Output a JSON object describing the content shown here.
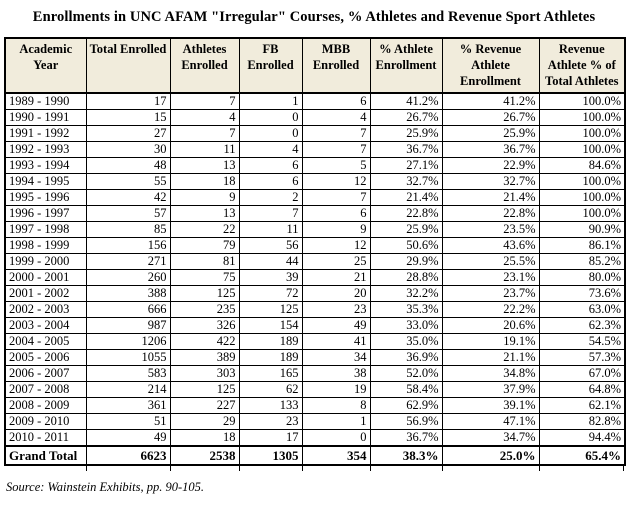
{
  "title": "Enrollments in UNC AFAM \"Irregular\" Courses, % Athletes and Revenue Sport Athletes",
  "source_note": "Source: Wainstein Exhibits, pp. 90-105.",
  "colors": {
    "header_background": "#f1ecdc",
    "border": "#000000",
    "text": "#000000",
    "page_background": "#ffffff"
  },
  "chart_data": {
    "type": "table",
    "title": "Enrollments in UNC AFAM \"Irregular\" Courses, % Athletes and Revenue Sport Athletes",
    "columns": [
      "Academic Year",
      "Total Enrolled",
      "Athletes Enrolled",
      "FB Enrolled",
      "MBB Enrolled",
      "% Athlete Enrollment",
      "% Revenue Athlete Enrollment",
      "Revenue Athlete % of Total Athletes"
    ],
    "rows": [
      [
        "1989 - 1990",
        17,
        7,
        1,
        6,
        "41.2%",
        "41.2%",
        "100.0%"
      ],
      [
        "1990 - 1991",
        15,
        4,
        0,
        4,
        "26.7%",
        "26.7%",
        "100.0%"
      ],
      [
        "1991 - 1992",
        27,
        7,
        0,
        7,
        "25.9%",
        "25.9%",
        "100.0%"
      ],
      [
        "1992 - 1993",
        30,
        11,
        4,
        7,
        "36.7%",
        "36.7%",
        "100.0%"
      ],
      [
        "1993 - 1994",
        48,
        13,
        6,
        5,
        "27.1%",
        "22.9%",
        "84.6%"
      ],
      [
        "1994 - 1995",
        55,
        18,
        6,
        12,
        "32.7%",
        "32.7%",
        "100.0%"
      ],
      [
        "1995 - 1996",
        42,
        9,
        2,
        7,
        "21.4%",
        "21.4%",
        "100.0%"
      ],
      [
        "1996 - 1997",
        57,
        13,
        7,
        6,
        "22.8%",
        "22.8%",
        "100.0%"
      ],
      [
        "1997 - 1998",
        85,
        22,
        11,
        9,
        "25.9%",
        "23.5%",
        "90.9%"
      ],
      [
        "1998 - 1999",
        156,
        79,
        56,
        12,
        "50.6%",
        "43.6%",
        "86.1%"
      ],
      [
        "1999 - 2000",
        271,
        81,
        44,
        25,
        "29.9%",
        "25.5%",
        "85.2%"
      ],
      [
        "2000 - 2001",
        260,
        75,
        39,
        21,
        "28.8%",
        "23.1%",
        "80.0%"
      ],
      [
        "2001 - 2002",
        388,
        125,
        72,
        20,
        "32.2%",
        "23.7%",
        "73.6%"
      ],
      [
        "2002 - 2003",
        666,
        235,
        125,
        23,
        "35.3%",
        "22.2%",
        "63.0%"
      ],
      [
        "2003 - 2004",
        987,
        326,
        154,
        49,
        "33.0%",
        "20.6%",
        "62.3%"
      ],
      [
        "2004 - 2005",
        1206,
        422,
        189,
        41,
        "35.0%",
        "19.1%",
        "54.5%"
      ],
      [
        "2005 - 2006",
        1055,
        389,
        189,
        34,
        "36.9%",
        "21.1%",
        "57.3%"
      ],
      [
        "2006 - 2007",
        583,
        303,
        165,
        38,
        "52.0%",
        "34.8%",
        "67.0%"
      ],
      [
        "2007 - 2008",
        214,
        125,
        62,
        19,
        "58.4%",
        "37.9%",
        "64.8%"
      ],
      [
        "2008 - 2009",
        361,
        227,
        133,
        8,
        "62.9%",
        "39.1%",
        "62.1%"
      ],
      [
        "2009 - 2010",
        51,
        29,
        23,
        1,
        "56.9%",
        "47.1%",
        "82.8%"
      ],
      [
        "2010 - 2011",
        49,
        18,
        17,
        0,
        "36.7%",
        "34.7%",
        "94.4%"
      ]
    ],
    "total_row": [
      "Grand Total",
      6623,
      2538,
      1305,
      354,
      "38.3%",
      "25.0%",
      "65.4%"
    ]
  }
}
